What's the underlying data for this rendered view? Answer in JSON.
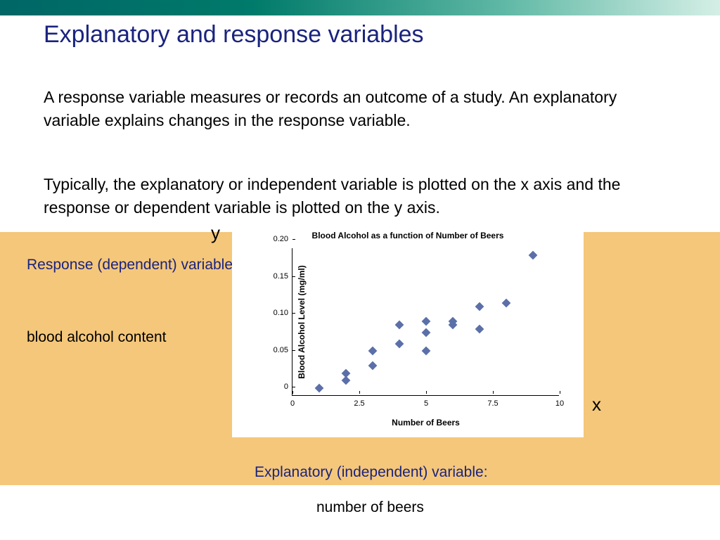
{
  "header": {
    "title": "Explanatory and response variables"
  },
  "body": {
    "paragraph1": "A response variable measures or records an outcome of a study. An explanatory variable explains changes in the response variable.",
    "paragraph2": "Typically, the explanatory or independent variable is plotted on the x axis and the response or dependent variable is plotted on the y axis."
  },
  "annotations": {
    "y_letter": "y",
    "x_letter": "x",
    "response_label": "Response (dependent) variable:",
    "response_value": "blood alcohol content",
    "explanatory_label": "Explanatory (independent) variable:",
    "explanatory_value": "number of beers"
  },
  "chart": {
    "type": "scatter",
    "title": "Blood Alcohol as a function of Number of Beers",
    "xlabel": "Number of Beers",
    "ylabel": "Blood Alcohol Level (mg/ml)",
    "xlim": [
      0,
      10
    ],
    "ylim": [
      0,
      0.2
    ],
    "xticks": [
      0,
      2.5,
      5,
      7.5,
      10
    ],
    "yticks": [
      0,
      0.05,
      0.1,
      0.15,
      0.2
    ],
    "xtick_labels": [
      "0",
      "2.5",
      "5",
      "7.5",
      "10"
    ],
    "ytick_labels": [
      "0",
      "0.05",
      "0.10",
      "0.15",
      "0.20"
    ],
    "marker_color": "#5b6fa8",
    "marker_size": 9,
    "marker_shape": "diamond",
    "background_color": "#ffffff",
    "axis_color": "#000000",
    "label_fontsize": 12,
    "title_fontsize": 12,
    "points": [
      {
        "x": 1.0,
        "y": 0.01
      },
      {
        "x": 2.0,
        "y": 0.03
      },
      {
        "x": 2.0,
        "y": 0.02
      },
      {
        "x": 3.0,
        "y": 0.04
      },
      {
        "x": 3.0,
        "y": 0.06
      },
      {
        "x": 4.0,
        "y": 0.07
      },
      {
        "x": 4.0,
        "y": 0.095
      },
      {
        "x": 5.0,
        "y": 0.06
      },
      {
        "x": 5.0,
        "y": 0.085
      },
      {
        "x": 5.0,
        "y": 0.1
      },
      {
        "x": 6.0,
        "y": 0.095
      },
      {
        "x": 6.0,
        "y": 0.1
      },
      {
        "x": 7.0,
        "y": 0.09
      },
      {
        "x": 7.0,
        "y": 0.12
      },
      {
        "x": 8.0,
        "y": 0.125
      },
      {
        "x": 9.0,
        "y": 0.19
      }
    ]
  },
  "colors": {
    "title_color": "#1a237e",
    "text_color": "#000000",
    "highlight_box": "#f5c77a",
    "top_bar_start": "#006666",
    "top_bar_end": "#d5efe6"
  }
}
